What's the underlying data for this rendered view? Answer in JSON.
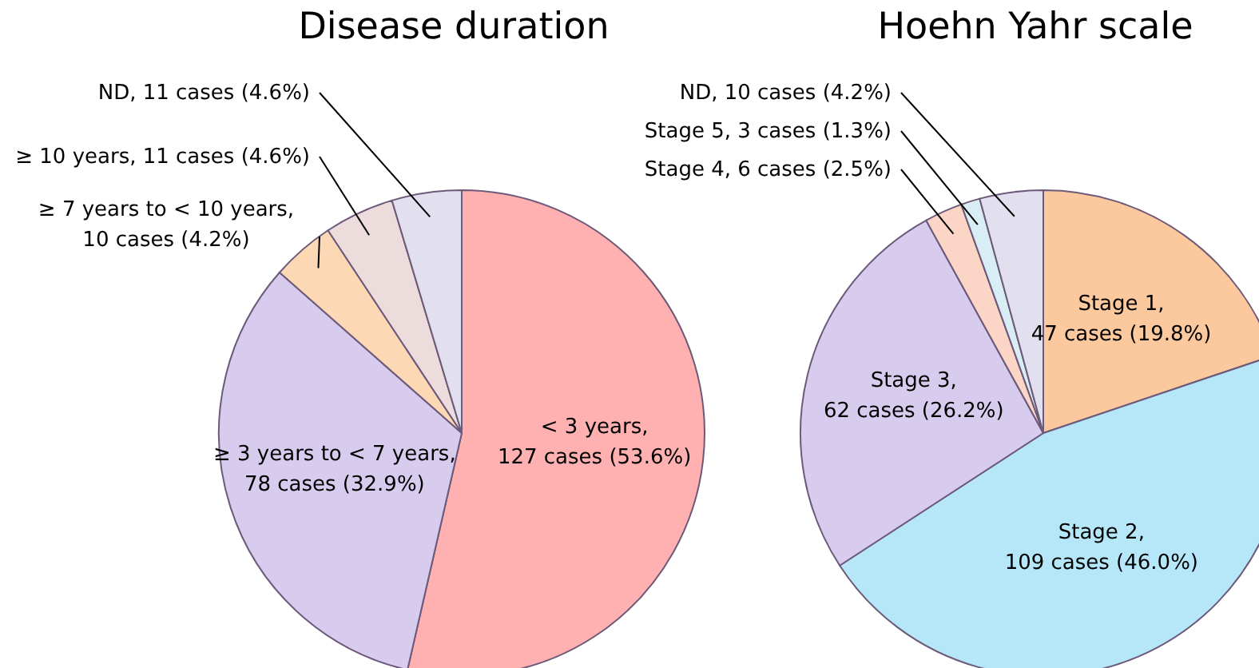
{
  "chart_data": [
    {
      "type": "pie",
      "title": "Disease duration",
      "categories": [
        "< 3 years, 127 cases (53.6%)",
        "≥ 3 years to < 7 years, 78 cases (32.9%)",
        "≥ 7 years to < 10 years, 10 cases (4.2%)",
        "≥ 10 years, 11 cases (4.6%)",
        "ND, 11 cases (4.6%)"
      ],
      "values": [
        127,
        78,
        10,
        11,
        11
      ],
      "colors": [
        "#ffb0b0",
        "#d8ccee",
        "#fdd8b4",
        "#ecdcdc",
        "#e2e0ee"
      ],
      "legend": false
    },
    {
      "type": "pie",
      "title": "Hoehn Yahr scale",
      "categories": [
        "Stage 1, 47 cases (19.8%)",
        "Stage 2, 109 cases (46.0%)",
        "Stage 3, 62 cases (26.2%)",
        "Stage 4, 6 cases (2.5%)",
        "Stage 5, 3 cases (1.3%)",
        "ND, 10 cases (4.2%)"
      ],
      "values": [
        47,
        109,
        62,
        6,
        3,
        10
      ],
      "colors": [
        "#fcc89e",
        "#b5e7f8",
        "#d8ccee",
        "#fbd5c6",
        "#d9edf4",
        "#e2e0ee"
      ],
      "legend": false
    }
  ]
}
